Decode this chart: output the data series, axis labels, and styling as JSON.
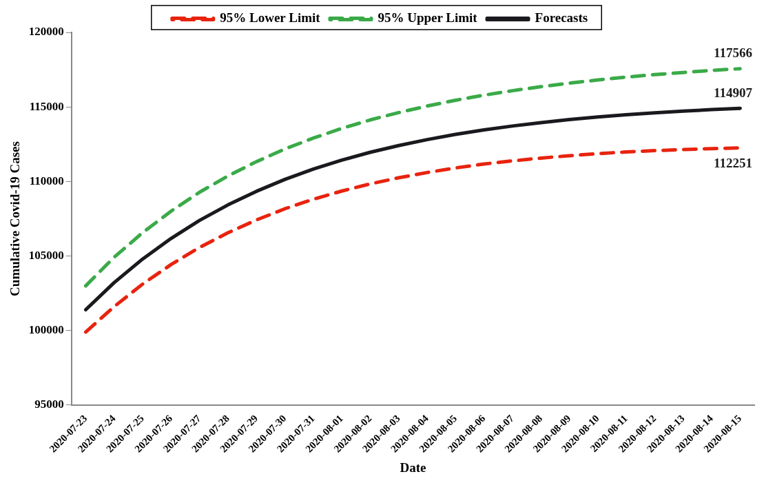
{
  "chart_data": {
    "type": "line",
    "xlabel": "Date",
    "ylabel": "Cumulative Covid-19 Cases",
    "categories": [
      "2020-07-23",
      "2020-07-24",
      "2020-07-25",
      "2020-07-26",
      "2020-07-27",
      "2020-07-28",
      "2020-07-29",
      "2020-07-30",
      "2020-07-31",
      "2020-08-01",
      "2020-08-02",
      "2020-08-03",
      "2020-08-04",
      "2020-08-05",
      "2020-08-06",
      "2020-08-07",
      "2020-08-08",
      "2020-08-09",
      "2020-08-10",
      "2020-08-11",
      "2020-08-12",
      "2020-08-13",
      "2020-08-14",
      "2020-08-15"
    ],
    "series": [
      {
        "name": "95% Lower Limit",
        "color": "#e8230e",
        "line_style": "dashed",
        "values": [
          99900,
          101610,
          103120,
          104430,
          105580,
          106560,
          107420,
          108170,
          108810,
          109360,
          109840,
          110250,
          110600,
          110910,
          111170,
          111380,
          111570,
          111730,
          111870,
          111980,
          112070,
          112140,
          112200,
          112251
        ],
        "value_labels": [
          null,
          null,
          null,
          null,
          null,
          null,
          null,
          null,
          null,
          null,
          null,
          null,
          null,
          null,
          null,
          null,
          null,
          null,
          null,
          null,
          null,
          null,
          null,
          "112251"
        ]
      },
      {
        "name": "95% Upper Limit",
        "color": "#3aaa48",
        "line_style": "dashed",
        "values": [
          103000,
          104920,
          106570,
          108010,
          109280,
          110370,
          111330,
          112180,
          112910,
          113560,
          114130,
          114620,
          115060,
          115450,
          115790,
          116090,
          116360,
          116600,
          116810,
          117000,
          117170,
          117310,
          117450,
          117566
        ],
        "value_labels": [
          null,
          null,
          null,
          null,
          null,
          null,
          null,
          null,
          null,
          null,
          null,
          null,
          null,
          null,
          null,
          null,
          null,
          null,
          null,
          null,
          null,
          null,
          null,
          "117566"
        ]
      },
      {
        "name": "Forecasts",
        "color": "#1a1a1e",
        "line_style": "solid",
        "values": [
          101400,
          103220,
          104800,
          106180,
          107390,
          108430,
          109340,
          110140,
          110830,
          111430,
          111960,
          112410,
          112810,
          113160,
          113460,
          113720,
          113950,
          114150,
          114330,
          114480,
          114610,
          114720,
          114820,
          114907
        ],
        "value_labels": [
          null,
          null,
          null,
          null,
          null,
          null,
          null,
          null,
          null,
          null,
          null,
          null,
          null,
          null,
          null,
          null,
          null,
          null,
          null,
          null,
          null,
          null,
          null,
          "114907"
        ]
      }
    ],
    "ylim": [
      95000,
      120000
    ],
    "yticks": [
      95000,
      100000,
      105000,
      110000,
      115000,
      120000
    ],
    "grid": false,
    "legend": "top"
  }
}
